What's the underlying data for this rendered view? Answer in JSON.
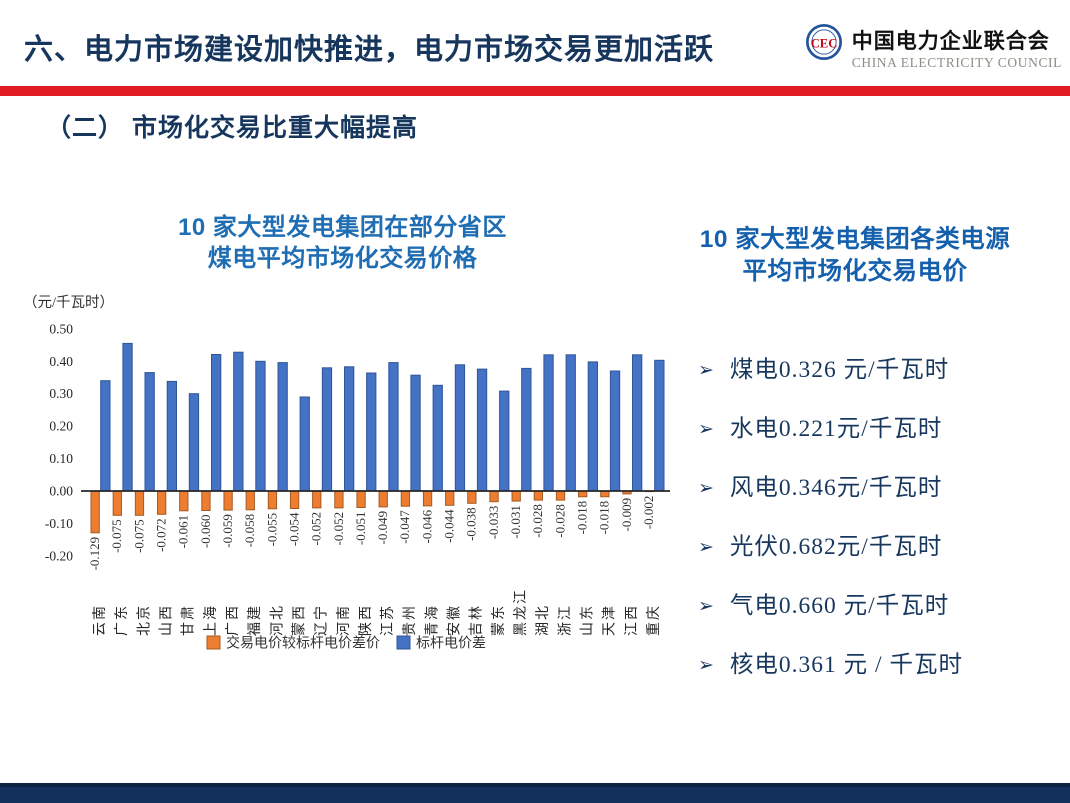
{
  "slide": {
    "title": "六、电力市场建设加快推进，电力市场交易更加活跃",
    "section_heading": "（二） 市场化交易比重大幅提高"
  },
  "logo": {
    "name_cn": "中国电力企业联合会",
    "name_en": "CHINA ELECTRICITY COUNCIL",
    "emblem_icon": "cec-monogram",
    "emblem_text": "CEC"
  },
  "left_chart": {
    "title_line1": "10 家大型发电集团在部分省区",
    "title_line2": "煤电平均市场化交易价格"
  },
  "right_panel": {
    "title_line1": "10 家大型发电集团各类电源",
    "title_line2": "平均市场化交易电价",
    "bullet_marker": "➢",
    "bullets": [
      "煤电0.326 元/千瓦时",
      "水电0.221元/千瓦时",
      "风电0.346元/千瓦时",
      "光伏0.682元/千瓦时",
      "气电0.660 元/千瓦时",
      "核电0.361 元 / 千瓦时"
    ]
  },
  "chart_data": {
    "type": "bar",
    "unit_label": "（元/千瓦时）",
    "categories": [
      "云南",
      "广东",
      "北京",
      "山西",
      "甘肃",
      "上海",
      "广西",
      "福建",
      "河北",
      "蒙西",
      "辽宁",
      "河南",
      "陕西",
      "江苏",
      "贵州",
      "青海",
      "安徽",
      "吉林",
      "蒙东",
      "黑龙江",
      "湖北",
      "浙江",
      "山东",
      "天津",
      "江西",
      "重庆"
    ],
    "series": [
      {
        "name": "交易电价较标杆电价差价",
        "color": "#ED7D31",
        "border": "#A55B20",
        "values": [
          -0.129,
          -0.075,
          -0.075,
          -0.072,
          -0.061,
          -0.06,
          -0.059,
          -0.058,
          -0.055,
          -0.054,
          -0.052,
          -0.052,
          -0.051,
          -0.049,
          -0.047,
          -0.046,
          -0.044,
          -0.038,
          -0.033,
          -0.031,
          -0.028,
          -0.028,
          -0.018,
          -0.018,
          -0.009,
          -0.002
        ],
        "data_labels": true
      },
      {
        "name": "标杆电价差",
        "color": "#4472C4",
        "border": "#2F5597",
        "values": [
          0.34,
          0.455,
          0.365,
          0.338,
          0.3,
          0.421,
          0.428,
          0.4,
          0.396,
          0.29,
          0.38,
          0.383,
          0.364,
          0.396,
          0.357,
          0.326,
          0.389,
          0.376,
          0.308,
          0.378,
          0.42,
          0.42,
          0.398,
          0.37,
          0.42,
          0.403
        ],
        "data_labels": false
      }
    ],
    "ylim": [
      -0.2,
      0.5
    ],
    "yticks": [
      0.5,
      0.4,
      0.3,
      0.2,
      0.1,
      0.0,
      -0.1,
      -0.2
    ],
    "grid": false,
    "legend_position": "bottom"
  },
  "colors": {
    "title_navy": "#17365D",
    "accent_red": "#E11B22",
    "left_chart_title_blue": "#1F6DB3",
    "right_title_blue": "#1560AC",
    "bar_orange": "#ED7D31",
    "bar_blue": "#4472C4",
    "footer_navy": "#132F5C"
  }
}
